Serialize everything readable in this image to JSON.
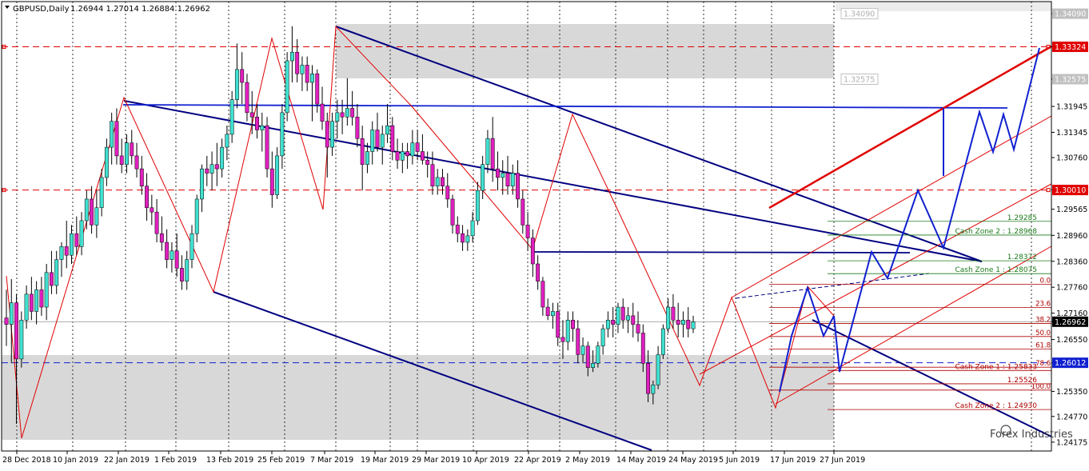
{
  "header": {
    "symbol": "GBPUSD,Daily",
    "ohlc": "1.26944 1.27014 1.26884 1.26962"
  },
  "colors": {
    "bull": "#40e0d0",
    "bear": "#e020c0",
    "wick": "#000000",
    "channel": "#000080",
    "impulse": "#1020d0",
    "redline": "#e00000",
    "fib": "#b00000",
    "zone": "#1a7a1a",
    "shade": "#d8d8d8",
    "tag_red": "#e00000",
    "tag_blue": "#1020d0",
    "tag_gray": "#c0c0c0",
    "tag_dark": "#000000"
  },
  "chart_data": {
    "type": "candlestick",
    "ylim": [
      1.2397,
      1.3437
    ],
    "y_ticks": [
      "1.34090",
      "1.33324",
      "1.32575",
      "1.31945",
      "1.31345",
      "1.30760",
      "1.30010",
      "1.29565",
      "1.28960",
      "1.28360",
      "1.27760",
      "1.27160",
      "1.26962",
      "1.26550",
      "1.26012",
      "1.25350",
      "1.24770",
      "1.24175"
    ],
    "x_ticks": [
      "28 Dec 2018",
      "10 Jan 2019",
      "22 Jan 2019",
      "1 Feb 2019",
      "13 Feb 2019",
      "25 Feb 2019",
      "7 Mar 2019",
      "19 Mar 2019",
      "29 Mar 2019",
      "10 Apr 2019",
      "22 Apr 2019",
      "2 May 2019",
      "14 May 2019",
      "24 May 2019",
      "5 Jun 2019",
      "17 Jun 2019",
      "27 Jun 2019"
    ],
    "price_tags": [
      {
        "label": "1.34090",
        "value": 1.3409,
        "style": "gray"
      },
      {
        "label": "1.33324",
        "value": 1.33324,
        "style": "red"
      },
      {
        "label": "1.32575",
        "value": 1.32575,
        "style": "gray"
      },
      {
        "label": "1.30010",
        "value": 1.3001,
        "style": "red"
      },
      {
        "label": "1.26962",
        "value": 1.26962,
        "style": "dark"
      },
      {
        "label": "1.26012",
        "value": 1.26012,
        "style": "blue"
      }
    ],
    "candles": [
      [
        1.2705,
        1.277,
        1.264,
        1.269
      ],
      [
        1.269,
        1.2795,
        1.26,
        1.274
      ],
      [
        1.274,
        1.276,
        1.246,
        1.261
      ],
      [
        1.261,
        1.272,
        1.259,
        1.27
      ],
      [
        1.27,
        1.278,
        1.268,
        1.276
      ],
      [
        1.276,
        1.28,
        1.27,
        1.272
      ],
      [
        1.272,
        1.279,
        1.269,
        1.277
      ],
      [
        1.277,
        1.28,
        1.271,
        1.273
      ],
      [
        1.273,
        1.283,
        1.27,
        1.281
      ],
      [
        1.281,
        1.286,
        1.276,
        1.278
      ],
      [
        1.278,
        1.286,
        1.276,
        1.284
      ],
      [
        1.284,
        1.288,
        1.28,
        1.287
      ],
      [
        1.287,
        1.293,
        1.282,
        1.285
      ],
      [
        1.285,
        1.292,
        1.283,
        1.29
      ],
      [
        1.29,
        1.294,
        1.285,
        1.287
      ],
      [
        1.287,
        1.295,
        1.285,
        1.293
      ],
      [
        1.293,
        1.3,
        1.291,
        1.298
      ],
      [
        1.298,
        1.301,
        1.29,
        1.292
      ],
      [
        1.292,
        1.3,
        1.289,
        1.296
      ],
      [
        1.296,
        1.305,
        1.294,
        1.303
      ],
      [
        1.303,
        1.312,
        1.301,
        1.31
      ],
      [
        1.31,
        1.318,
        1.306,
        1.316
      ],
      [
        1.316,
        1.319,
        1.306,
        1.308
      ],
      [
        1.308,
        1.312,
        1.304,
        1.306
      ],
      [
        1.306,
        1.313,
        1.304,
        1.311
      ],
      [
        1.311,
        1.314,
        1.306,
        1.308
      ],
      [
        1.308,
        1.311,
        1.303,
        1.305
      ],
      [
        1.305,
        1.308,
        1.299,
        1.301
      ],
      [
        1.301,
        1.304,
        1.293,
        1.296
      ],
      [
        1.296,
        1.299,
        1.292,
        1.295
      ],
      [
        1.295,
        1.298,
        1.288,
        1.29
      ],
      [
        1.29,
        1.294,
        1.286,
        1.288
      ],
      [
        1.288,
        1.291,
        1.282,
        1.284
      ],
      [
        1.284,
        1.288,
        1.281,
        1.286
      ],
      [
        1.286,
        1.29,
        1.28,
        1.282
      ],
      [
        1.282,
        1.285,
        1.277,
        1.279
      ],
      [
        1.279,
        1.286,
        1.277,
        1.284
      ],
      [
        1.284,
        1.292,
        1.282,
        1.29
      ],
      [
        1.29,
        1.299,
        1.288,
        1.298
      ],
      [
        1.298,
        1.306,
        1.295,
        1.305
      ],
      [
        1.305,
        1.308,
        1.301,
        1.304
      ],
      [
        1.304,
        1.309,
        1.3,
        1.306
      ],
      [
        1.306,
        1.311,
        1.301,
        1.305
      ],
      [
        1.305,
        1.312,
        1.303,
        1.31
      ],
      [
        1.31,
        1.315,
        1.307,
        1.313
      ],
      [
        1.313,
        1.323,
        1.311,
        1.321
      ],
      [
        1.321,
        1.334,
        1.319,
        1.328
      ],
      [
        1.328,
        1.332,
        1.32,
        1.325
      ],
      [
        1.325,
        1.327,
        1.316,
        1.318
      ],
      [
        1.318,
        1.323,
        1.313,
        1.317
      ],
      [
        1.317,
        1.32,
        1.312,
        1.314
      ],
      [
        1.314,
        1.318,
        1.309,
        1.315
      ],
      [
        1.315,
        1.317,
        1.303,
        1.305
      ],
      [
        1.305,
        1.309,
        1.296,
        1.299
      ],
      [
        1.299,
        1.31,
        1.298,
        1.308
      ],
      [
        1.308,
        1.32,
        1.305,
        1.318
      ],
      [
        1.318,
        1.332,
        1.316,
        1.33
      ],
      [
        1.33,
        1.338,
        1.325,
        1.332
      ],
      [
        1.332,
        1.335,
        1.325,
        1.327
      ],
      [
        1.327,
        1.331,
        1.323,
        1.329
      ],
      [
        1.329,
        1.331,
        1.323,
        1.325
      ],
      [
        1.325,
        1.329,
        1.316,
        1.327
      ],
      [
        1.327,
        1.328,
        1.318,
        1.32
      ],
      [
        1.32,
        1.324,
        1.314,
        1.316
      ],
      [
        1.316,
        1.318,
        1.303,
        1.31
      ],
      [
        1.31,
        1.318,
        1.308,
        1.316
      ],
      [
        1.316,
        1.321,
        1.312,
        1.318
      ],
      [
        1.318,
        1.321,
        1.313,
        1.317
      ],
      [
        1.317,
        1.326,
        1.315,
        1.319
      ],
      [
        1.319,
        1.323,
        1.315,
        1.317
      ],
      [
        1.317,
        1.32,
        1.31,
        1.312
      ],
      [
        1.312,
        1.315,
        1.3,
        1.306
      ],
      [
        1.306,
        1.311,
        1.304,
        1.309
      ],
      [
        1.309,
        1.316,
        1.306,
        1.314
      ],
      [
        1.314,
        1.318,
        1.309,
        1.31
      ],
      [
        1.31,
        1.315,
        1.306,
        1.313
      ],
      [
        1.313,
        1.32,
        1.311,
        1.315
      ],
      [
        1.315,
        1.317,
        1.307,
        1.309
      ],
      [
        1.309,
        1.312,
        1.305,
        1.307
      ],
      [
        1.307,
        1.311,
        1.304,
        1.309
      ],
      [
        1.309,
        1.311,
        1.305,
        1.308
      ],
      [
        1.308,
        1.314,
        1.306,
        1.311
      ],
      [
        1.311,
        1.314,
        1.307,
        1.309
      ],
      [
        1.309,
        1.313,
        1.306,
        1.307
      ],
      [
        1.307,
        1.309,
        1.303,
        1.306
      ],
      [
        1.306,
        1.309,
        1.299,
        1.301
      ],
      [
        1.301,
        1.305,
        1.299,
        1.303
      ],
      [
        1.303,
        1.305,
        1.299,
        1.301
      ],
      [
        1.301,
        1.304,
        1.296,
        1.298
      ],
      [
        1.298,
        1.299,
        1.29,
        1.292
      ],
      [
        1.292,
        1.294,
        1.288,
        1.29
      ],
      [
        1.29,
        1.292,
        1.286,
        1.288
      ],
      [
        1.288,
        1.291,
        1.286,
        1.2895
      ],
      [
        1.2895,
        1.295,
        1.288,
        1.293
      ],
      [
        1.293,
        1.302,
        1.292,
        1.3
      ],
      [
        1.3,
        1.308,
        1.298,
        1.306
      ],
      [
        1.306,
        1.314,
        1.304,
        1.312
      ],
      [
        1.312,
        1.317,
        1.302,
        1.305
      ],
      [
        1.305,
        1.309,
        1.3,
        1.303
      ],
      [
        1.303,
        1.307,
        1.299,
        1.304
      ],
      [
        1.304,
        1.308,
        1.299,
        1.301
      ],
      [
        1.301,
        1.306,
        1.299,
        1.304
      ],
      [
        1.304,
        1.307,
        1.296,
        1.298
      ],
      [
        1.298,
        1.3,
        1.29,
        1.292
      ],
      [
        1.292,
        1.295,
        1.286,
        1.289
      ],
      [
        1.289,
        1.291,
        1.28,
        1.283
      ],
      [
        1.283,
        1.285,
        1.277,
        1.279
      ],
      [
        1.279,
        1.28,
        1.271,
        1.273
      ],
      [
        1.273,
        1.275,
        1.27,
        1.271
      ],
      [
        1.271,
        1.274,
        1.268,
        1.272
      ],
      [
        1.272,
        1.274,
        1.264,
        1.266
      ],
      [
        1.266,
        1.27,
        1.261,
        1.265
      ],
      [
        1.265,
        1.272,
        1.263,
        1.27
      ],
      [
        1.27,
        1.272,
        1.265,
        1.268
      ],
      [
        1.268,
        1.27,
        1.26,
        1.262
      ],
      [
        1.262,
        1.266,
        1.26,
        1.264
      ],
      [
        1.264,
        1.265,
        1.257,
        1.259
      ],
      [
        1.259,
        1.263,
        1.258,
        1.26
      ],
      [
        1.26,
        1.265,
        1.259,
        1.264
      ],
      [
        1.264,
        1.269,
        1.262,
        1.268
      ],
      [
        1.268,
        1.272,
        1.266,
        1.27
      ],
      [
        1.27,
        1.273,
        1.266,
        1.269
      ],
      [
        1.269,
        1.274,
        1.267,
        1.273
      ],
      [
        1.273,
        1.275,
        1.268,
        1.27
      ],
      [
        1.27,
        1.273,
        1.267,
        1.271
      ],
      [
        1.271,
        1.274,
        1.266,
        1.269
      ],
      [
        1.269,
        1.272,
        1.265,
        1.267
      ],
      [
        1.267,
        1.269,
        1.258,
        1.26
      ],
      [
        1.26,
        1.263,
        1.251,
        1.253
      ],
      [
        1.253,
        1.256,
        1.2505,
        1.255
      ],
      [
        1.255,
        1.264,
        1.254,
        1.262
      ],
      [
        1.262,
        1.269,
        1.261,
        1.268
      ],
      [
        1.268,
        1.275,
        1.267,
        1.273
      ],
      [
        1.273,
        1.276,
        1.268,
        1.27
      ],
      [
        1.27,
        1.274,
        1.266,
        1.269
      ],
      [
        1.269,
        1.272,
        1.266,
        1.27
      ],
      [
        1.27,
        1.273,
        1.266,
        1.268
      ],
      [
        1.268,
        1.271,
        1.267,
        1.2696
      ]
    ]
  },
  "annotations": {
    "fib_levels": [
      {
        "label": "0.0",
        "value": 1.2783
      },
      {
        "label": "23.6",
        "value": 1.2729
      },
      {
        "label": "38.2",
        "value": 1.2692
      },
      {
        "label": "50.0",
        "value": 1.2662
      },
      {
        "label": "61.8",
        "value": 1.2633
      },
      {
        "label": "78.6",
        "value": 1.2591
      },
      {
        "label": "100.0",
        "value": 1.2538
      }
    ],
    "zone_levels": [
      {
        "label": "1.29285",
        "value": 1.29285
      },
      {
        "label": "Cash Zone 2 : 1.28968",
        "value": 1.28968
      },
      {
        "label": "1.28372",
        "value": 1.28372
      },
      {
        "label": "Cash Zone 1 : 1.28075",
        "value": 1.28075
      }
    ],
    "red_zone_labels": [
      {
        "label": "Cash Zone 1 : 1.25833",
        "value": 1.25833
      },
      {
        "label": "1.25526",
        "value": 1.25526
      },
      {
        "label": "Cash Zone 2 : 1.24930",
        "value": 1.2493
      }
    ],
    "watermark": "Forex Industries"
  }
}
